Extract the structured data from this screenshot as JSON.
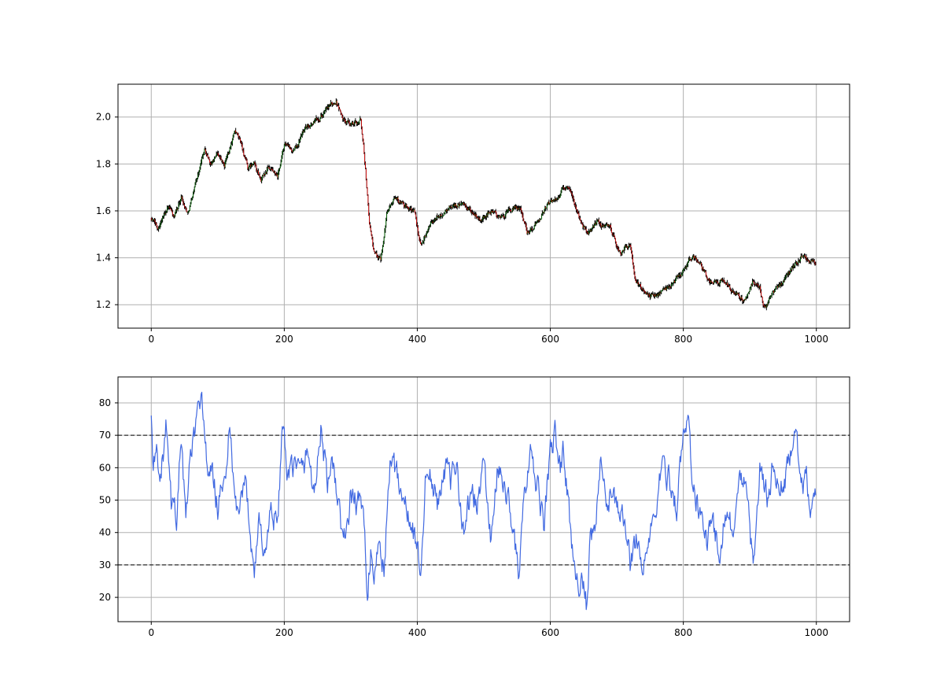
{
  "chart_data": [
    {
      "type": "candlestick",
      "title": "",
      "xlabel": "",
      "ylabel": "",
      "xlim": [
        -50,
        1050
      ],
      "ylim": [
        1.1,
        2.14
      ],
      "xticks": [
        0,
        200,
        400,
        600,
        800,
        1000
      ],
      "yticks": [
        1.2,
        1.4,
        1.6,
        1.8,
        2.0
      ],
      "xtick_labels": [
        "0",
        "200",
        "400",
        "600",
        "800",
        "1000"
      ],
      "ytick_labels": [
        "1.2",
        "1.4",
        "1.6",
        "1.8",
        "2.0"
      ],
      "grid": true,
      "colors": {
        "up": "#008000",
        "down": "#ff0000",
        "wick": "#000000"
      },
      "close_anchors": {
        "x": [
          0,
          10,
          25,
          35,
          45,
          55,
          65,
          80,
          90,
          100,
          110,
          125,
          135,
          145,
          155,
          165,
          175,
          190,
          200,
          215,
          230,
          245,
          260,
          270,
          278,
          290,
          305,
          315,
          320,
          328,
          335,
          345,
          355,
          365,
          380,
          395,
          405,
          420,
          435,
          450,
          465,
          480,
          495,
          510,
          525,
          540,
          555,
          565,
          580,
          595,
          610,
          625,
          640,
          655,
          670,
          690,
          705,
          720,
          728,
          740,
          750,
          765,
          780,
          800,
          815,
          825,
          840,
          860,
          875,
          890,
          905,
          915,
          922,
          935,
          950,
          965,
          980,
          990,
          1000
        ],
        "y": [
          1.57,
          1.53,
          1.62,
          1.57,
          1.66,
          1.59,
          1.7,
          1.86,
          1.8,
          1.85,
          1.79,
          1.94,
          1.89,
          1.78,
          1.8,
          1.73,
          1.78,
          1.74,
          1.88,
          1.85,
          1.95,
          1.98,
          2.02,
          2.05,
          2.07,
          1.98,
          1.97,
          1.99,
          1.85,
          1.55,
          1.42,
          1.4,
          1.6,
          1.67,
          1.62,
          1.6,
          1.45,
          1.55,
          1.58,
          1.62,
          1.63,
          1.6,
          1.56,
          1.6,
          1.57,
          1.6,
          1.62,
          1.51,
          1.55,
          1.62,
          1.66,
          1.71,
          1.6,
          1.5,
          1.55,
          1.53,
          1.42,
          1.46,
          1.3,
          1.27,
          1.23,
          1.25,
          1.28,
          1.34,
          1.41,
          1.37,
          1.3,
          1.3,
          1.26,
          1.22,
          1.3,
          1.27,
          1.18,
          1.25,
          1.3,
          1.37,
          1.41,
          1.38,
          1.38
        ]
      }
    },
    {
      "type": "line",
      "title": "",
      "xlabel": "",
      "ylabel": "",
      "xlim": [
        -50,
        1050
      ],
      "ylim": [
        12.5,
        88
      ],
      "xticks": [
        0,
        200,
        400,
        600,
        800,
        1000
      ],
      "yticks": [
        20,
        30,
        40,
        50,
        60,
        70,
        80
      ],
      "xtick_labels": [
        "0",
        "200",
        "400",
        "600",
        "800",
        "1000"
      ],
      "ytick_labels": [
        "20",
        "30",
        "40",
        "50",
        "60",
        "70",
        "80"
      ],
      "grid": true,
      "line_color": "#4169e1",
      "reference_lines": [
        70,
        30
      ],
      "anchors": {
        "x": [
          0,
          3,
          8,
          15,
          22,
          30,
          38,
          45,
          52,
          58,
          65,
          72,
          75,
          80,
          85,
          92,
          100,
          110,
          118,
          125,
          133,
          142,
          150,
          155,
          162,
          170,
          180,
          190,
          197,
          205,
          215,
          225,
          235,
          245,
          255,
          265,
          275,
          285,
          293,
          300,
          310,
          318,
          325,
          330,
          335,
          342,
          350,
          360,
          368,
          375,
          385,
          395,
          405,
          412,
          420,
          430,
          440,
          450,
          460,
          470,
          480,
          490,
          500,
          510,
          520,
          530,
          540,
          548,
          552,
          560,
          570,
          580,
          590,
          600,
          608,
          615,
          620,
          625,
          632,
          640,
          650,
          655,
          660,
          668,
          675,
          685,
          695,
          705,
          712,
          720,
          730,
          738,
          745,
          752,
          760,
          770,
          780,
          790,
          800,
          808,
          812,
          818,
          825,
          835,
          845,
          855,
          865,
          875,
          885,
          895,
          905,
          915,
          920,
          927,
          935,
          945,
          955,
          965,
          975,
          980,
          985,
          990,
          995,
          1000
        ],
        "y": [
          76,
          60,
          65,
          58,
          72,
          48,
          45,
          70,
          42,
          62,
          70,
          78,
          85,
          72,
          55,
          58,
          48,
          55,
          72,
          50,
          45,
          55,
          38,
          28,
          45,
          32,
          48,
          42,
          74,
          55,
          62,
          58,
          65,
          52,
          72,
          55,
          60,
          42,
          37,
          52,
          48,
          50,
          22,
          35,
          19,
          38,
          28,
          65,
          58,
          55,
          45,
          40,
          28,
          55,
          58,
          48,
          62,
          55,
          60,
          40,
          52,
          48,
          62,
          38,
          58,
          55,
          48,
          35,
          25,
          50,
          62,
          55,
          42,
          65,
          70,
          60,
          65,
          55,
          35,
          28,
          22,
          16,
          35,
          42,
          60,
          48,
          55,
          42,
          45,
          30,
          40,
          28,
          35,
          40,
          50,
          62,
          55,
          48,
          70,
          75,
          60,
          52,
          45,
          38,
          42,
          35,
          48,
          40,
          55,
          58,
          28,
          60,
          55,
          50,
          62,
          52,
          58,
          70,
          62,
          52,
          55,
          50,
          48,
          50
        ]
      }
    }
  ]
}
